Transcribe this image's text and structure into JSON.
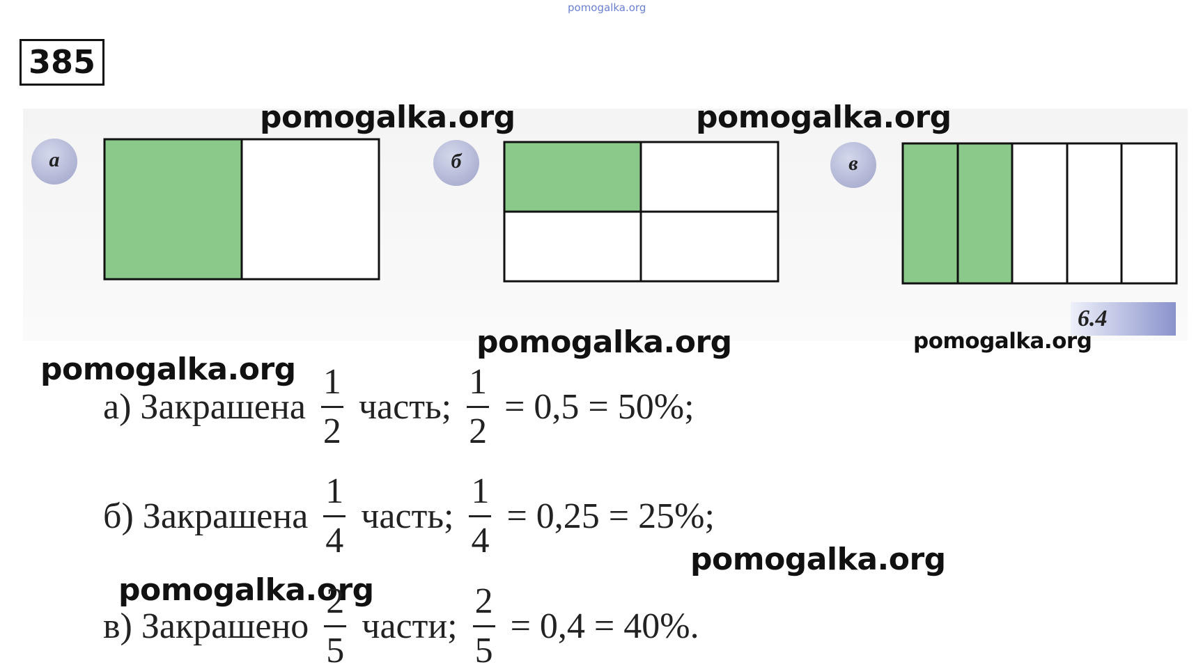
{
  "header": {
    "site": "pomogalka.org",
    "problem_number": "385"
  },
  "figure": {
    "panels": [
      {
        "label": "а"
      },
      {
        "label": "б"
      },
      {
        "label": "в"
      }
    ],
    "caption": "6.4"
  },
  "watermarks": [
    "pomogalka.org",
    "pomogalka.org",
    "pomogalka.org",
    "pomogalka.org",
    "pomogalka.org",
    "pomogalka.org",
    "pomogalka.org"
  ],
  "solution": {
    "lines": [
      {
        "prefix": "а) Закрашена",
        "fraction": {
          "numerator": "1",
          "denominator": "2"
        },
        "word": "часть;",
        "fraction2": {
          "numerator": "1",
          "denominator": "2"
        },
        "result": "= 0,5 = 50%;"
      },
      {
        "prefix": "б) Закрашена",
        "fraction": {
          "numerator": "1",
          "denominator": "4"
        },
        "word": "часть;",
        "fraction2": {
          "numerator": "1",
          "denominator": "4"
        },
        "result": "= 0,25 = 25%;"
      },
      {
        "prefix": "в) Закрашено",
        "fraction": {
          "numerator": "2",
          "denominator": "5"
        },
        "word": "части;",
        "fraction2": {
          "numerator": "2",
          "denominator": "5"
        },
        "result": "= 0,4 = 40%."
      }
    ]
  }
}
